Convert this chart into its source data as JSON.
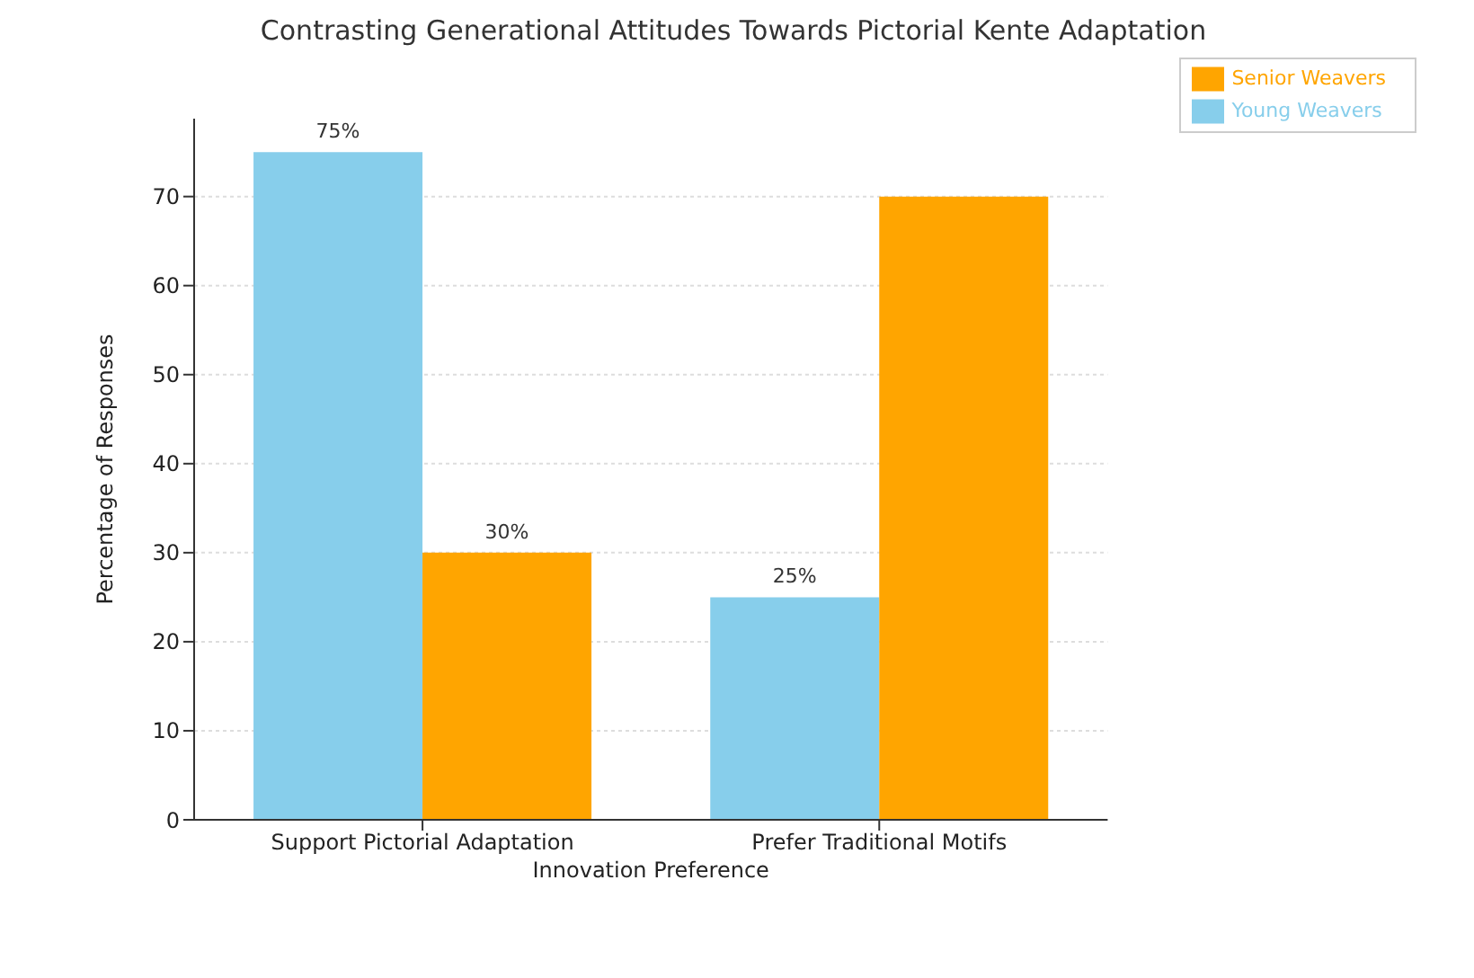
{
  "chart_data": {
    "type": "bar",
    "title": "Contrasting Generational Attitudes Towards Pictorial Kente Adaptation",
    "xlabel": "Innovation Preference",
    "ylabel": "Percentage of Responses",
    "categories": [
      "Support Pictorial Adaptation",
      "Prefer Traditional Motifs"
    ],
    "series": [
      {
        "name": "Young Weavers",
        "color": "#87ceeb",
        "values": [
          75,
          25
        ],
        "value_labels": [
          "75%",
          "25%"
        ]
      },
      {
        "name": "Senior Weavers",
        "color": "#ffa500",
        "values": [
          30,
          70
        ],
        "value_labels": [
          "30%",
          null
        ]
      }
    ],
    "ylim": [
      0,
      78.75
    ],
    "yticks": [
      0,
      10,
      20,
      30,
      40,
      50,
      60,
      70
    ],
    "grid": "y",
    "legend": "top right"
  }
}
